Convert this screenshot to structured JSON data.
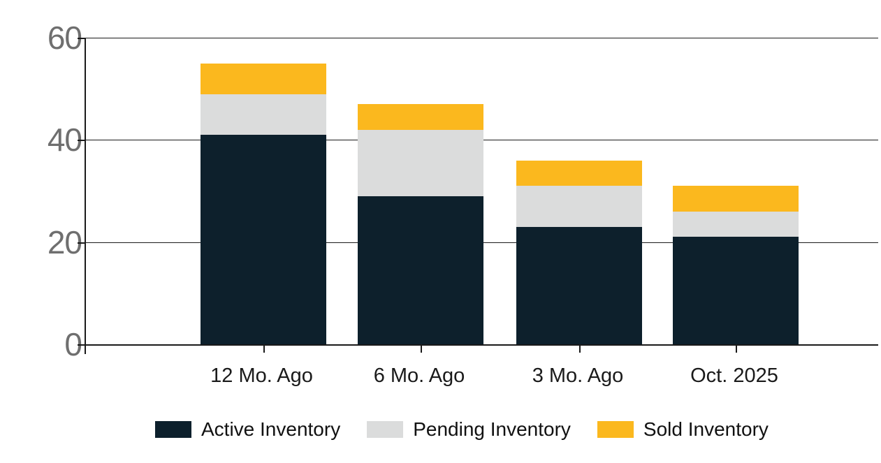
{
  "chart_data": {
    "type": "bar",
    "stacked": true,
    "title": "",
    "xlabel": "",
    "ylabel": "",
    "categories": [
      "12 Mo. Ago",
      "6 Mo. Ago",
      "3 Mo. Ago",
      "Oct. 2025"
    ],
    "series": [
      {
        "name": "Active Inventory",
        "color": "#0d202c",
        "values": [
          41,
          29,
          23,
          21
        ]
      },
      {
        "name": "Pending Inventory",
        "color": "#dbdcdc",
        "values": [
          8,
          13,
          8,
          5
        ]
      },
      {
        "name": "Sold Inventory",
        "color": "#fbb81e",
        "values": [
          6,
          5,
          5,
          5
        ]
      }
    ],
    "totals": [
      55,
      47,
      36,
      31
    ],
    "ylim": [
      0,
      60
    ],
    "yticks": [
      0,
      20,
      40,
      60
    ],
    "ytick_labels": [
      "0",
      "20",
      "40",
      "60"
    ],
    "grid": true,
    "legend_position": "bottom",
    "colors": {
      "axis": "#1a1a1a",
      "tick_label": "#6f6f6f",
      "category_label": "#1a1a1a",
      "legend_label": "#111111",
      "background": "#ffffff"
    }
  }
}
